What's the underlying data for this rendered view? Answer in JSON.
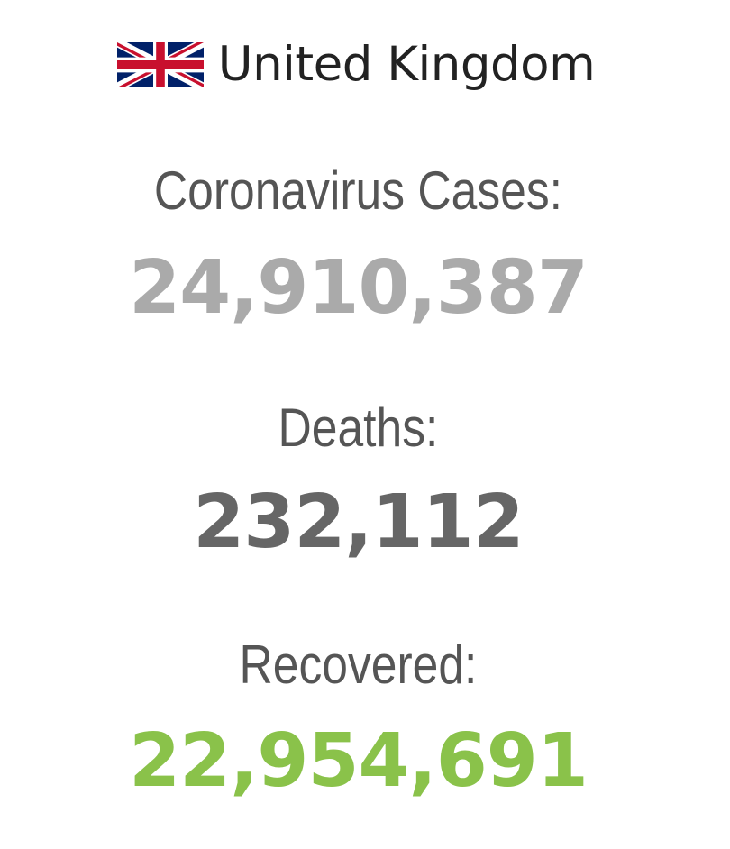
{
  "country": {
    "name": "United Kingdom",
    "flag_icon": "uk-flag-icon"
  },
  "stats": {
    "cases": {
      "label": "Coronavirus Cases:",
      "value": "24,910,387",
      "color": "#aaaaaa"
    },
    "deaths": {
      "label": "Deaths:",
      "value": "232,112",
      "color": "#666666"
    },
    "recovered": {
      "label": "Recovered:",
      "value": "22,954,691",
      "color": "#8ac24a"
    }
  }
}
